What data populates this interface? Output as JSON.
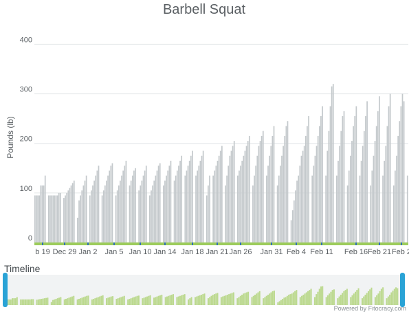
{
  "chart_data": {
    "type": "bar",
    "title": "Barbell Squat",
    "ylabel": "Pounds (lb)",
    "xlabel": "",
    "ylim": [
      0,
      420
    ],
    "yticks": [
      0,
      100,
      200,
      300,
      400
    ],
    "grid": true,
    "x_tick_labels": [
      "b 19",
      "Dec 29",
      "Jan 2",
      "Jan 5",
      "Jan 10",
      "Jan 14",
      "Jan 18",
      "Jan 21",
      "Jan 26",
      "Jan 31",
      "Feb 4",
      "Feb 11",
      "Feb 16",
      "Feb 21",
      "Feb 2"
    ],
    "navigator_label": "Timeline",
    "credit": "Powered by Fitocracy.com",
    "bar_color": "#c4c9cc",
    "axis_color": "#9ccc5a",
    "navigator_fill": "#bcd98f",
    "handle_color": "#2aa3d6",
    "series": [
      {
        "values": [
          95,
          95,
          95,
          95,
          115,
          115,
          115,
          135
        ]
      },
      {
        "values": [
          95,
          95,
          95,
          95,
          95,
          95,
          95,
          100,
          100
        ]
      },
      {
        "values": [
          90,
          95,
          100,
          105,
          110,
          115,
          120,
          125
        ]
      },
      {
        "values": [
          50,
          85,
          95,
          105,
          115,
          125,
          135
        ]
      },
      {
        "values": [
          95,
          105,
          115,
          125,
          135,
          145,
          155
        ]
      },
      {
        "values": [
          95,
          105,
          115,
          125,
          135,
          145,
          155,
          160
        ]
      },
      {
        "values": [
          95,
          105,
          115,
          125,
          135,
          145,
          155,
          165
        ]
      },
      {
        "values": [
          115,
          125,
          135,
          145,
          150
        ]
      },
      {
        "values": [
          105,
          115,
          125,
          135,
          145,
          155
        ]
      },
      {
        "values": [
          95,
          105,
          115,
          125,
          135,
          145,
          155,
          160
        ]
      },
      {
        "values": [
          115,
          125,
          135,
          145,
          155,
          165
        ]
      },
      {
        "values": [
          125,
          135,
          145,
          155,
          165,
          175
        ]
      },
      {
        "values": [
          135,
          145,
          155,
          165,
          175,
          185
        ]
      },
      {
        "values": [
          135,
          145,
          155,
          165,
          175,
          185
        ]
      },
      {
        "values": [
          95,
          115,
          135
        ]
      },
      {
        "values": [
          135,
          145,
          155,
          165,
          175,
          185,
          195
        ]
      },
      {
        "values": [
          115,
          135,
          155,
          175,
          185,
          195,
          205
        ]
      },
      {
        "values": [
          135,
          145,
          155,
          165,
          175,
          185,
          195,
          205,
          215
        ]
      },
      {
        "values": [
          115,
          135,
          155,
          175,
          195,
          205,
          215,
          225
        ]
      },
      {
        "values": [
          135,
          155,
          175,
          195,
          215,
          235
        ]
      },
      {
        "values": [
          115,
          135,
          155,
          175,
          195,
          215,
          235,
          245
        ]
      },
      {
        "values": [
          45,
          65,
          85,
          105,
          125,
          135,
          155,
          175,
          185,
          195,
          215,
          235,
          255
        ]
      },
      {
        "values": [
          135,
          155,
          175,
          195,
          215,
          235,
          255,
          275
        ]
      },
      {
        "values": [
          135,
          185,
          225,
          275,
          315,
          320
        ]
      },
      {
        "values": [
          135,
          165,
          195,
          225,
          255,
          265
        ]
      },
      {
        "values": [
          115,
          145,
          175,
          205,
          235,
          255,
          275
        ]
      },
      {
        "values": [
          135,
          165,
          195,
          225,
          255,
          285
        ]
      },
      {
        "values": [
          115,
          145,
          175,
          205,
          235,
          265,
          295
        ]
      },
      {
        "values": [
          135,
          165,
          195,
          235,
          275,
          300
        ]
      },
      {
        "values": [
          115,
          145,
          175,
          215,
          245,
          275,
          300,
          285
        ]
      },
      {
        "values": [
          135
        ]
      }
    ]
  }
}
